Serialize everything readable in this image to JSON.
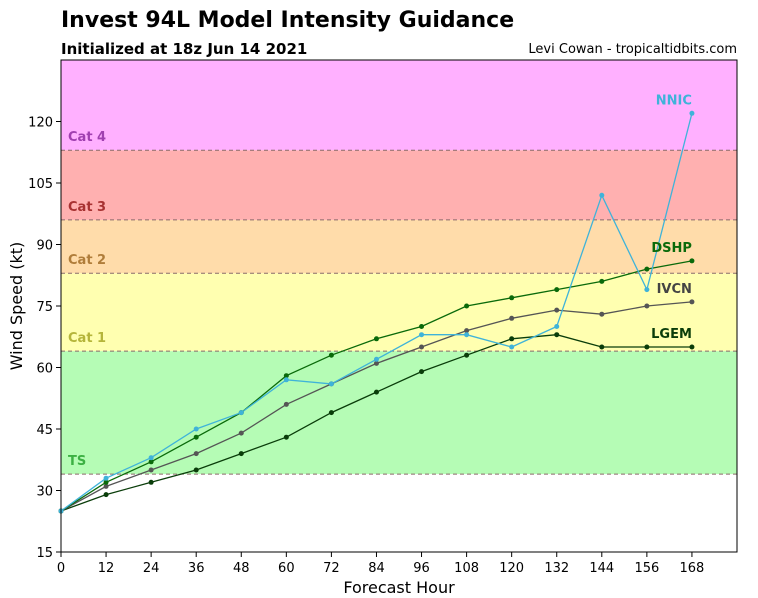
{
  "header": {
    "title": "Invest 94L Model Intensity Guidance",
    "subtitle": "Initialized at 18z Jun 14 2021",
    "credit": "Levi Cowan - tropicaltidbits.com"
  },
  "chart_data": {
    "type": "line",
    "xlabel": "Forecast Hour",
    "ylabel": "Wind Speed (kt)",
    "xlim": [
      0,
      180
    ],
    "ylim": [
      15,
      135
    ],
    "xticks": [
      0,
      12,
      24,
      36,
      48,
      60,
      72,
      84,
      96,
      108,
      120,
      132,
      144,
      156,
      168
    ],
    "yticks": [
      15,
      30,
      45,
      60,
      75,
      90,
      105,
      120
    ],
    "bands": [
      {
        "label": "TS",
        "from": 34,
        "to": 64,
        "color": "#b5fcb5",
        "label_color": "#3cb043"
      },
      {
        "label": "Cat 1",
        "from": 64,
        "to": 83,
        "color": "#ffffb0",
        "label_color": "#b5b53a"
      },
      {
        "label": "Cat 2",
        "from": 83,
        "to": 96,
        "color": "#ffdcaa",
        "label_color": "#b07d3a"
      },
      {
        "label": "Cat 3",
        "from": 96,
        "to": 113,
        "color": "#ffb0b0",
        "label_color": "#a83232"
      },
      {
        "label": "Cat 4",
        "from": 113,
        "to": 135,
        "color": "#ffb0ff",
        "label_color": "#a040b0"
      }
    ],
    "series": [
      {
        "name": "LGEM",
        "color": "#0a3d0a",
        "label_color": "#0a3d0a",
        "x": [
          0,
          12,
          24,
          36,
          48,
          60,
          72,
          84,
          96,
          108,
          120,
          132,
          144,
          156,
          168
        ],
        "y": [
          25,
          29,
          32,
          35,
          39,
          43,
          49,
          54,
          59,
          63,
          67,
          68,
          65,
          65,
          65
        ]
      },
      {
        "name": "IVCN",
        "color": "#555555",
        "label_color": "#444444",
        "x": [
          0,
          12,
          24,
          36,
          48,
          60,
          72,
          84,
          96,
          108,
          120,
          132,
          144,
          156,
          168
        ],
        "y": [
          25,
          31,
          35,
          39,
          44,
          51,
          56,
          61,
          65,
          69,
          72,
          74,
          73,
          75,
          76
        ]
      },
      {
        "name": "DSHP",
        "color": "#0a6a0a",
        "label_color": "#0a6a0a",
        "x": [
          0,
          12,
          24,
          36,
          48,
          60,
          72,
          84,
          96,
          108,
          120,
          132,
          144,
          156,
          168
        ],
        "y": [
          25,
          32,
          37,
          43,
          49,
          58,
          63,
          67,
          70,
          75,
          77,
          79,
          81,
          84,
          86
        ]
      },
      {
        "name": "NNIC",
        "color": "#3fb3d9",
        "label_color": "#3fb3d9",
        "x": [
          0,
          12,
          24,
          36,
          48,
          60,
          72,
          84,
          96,
          108,
          120,
          132,
          144,
          156,
          168
        ],
        "y": [
          25,
          33,
          38,
          45,
          49,
          57,
          56,
          62,
          68,
          68,
          65,
          70,
          102,
          79,
          122
        ]
      }
    ]
  }
}
